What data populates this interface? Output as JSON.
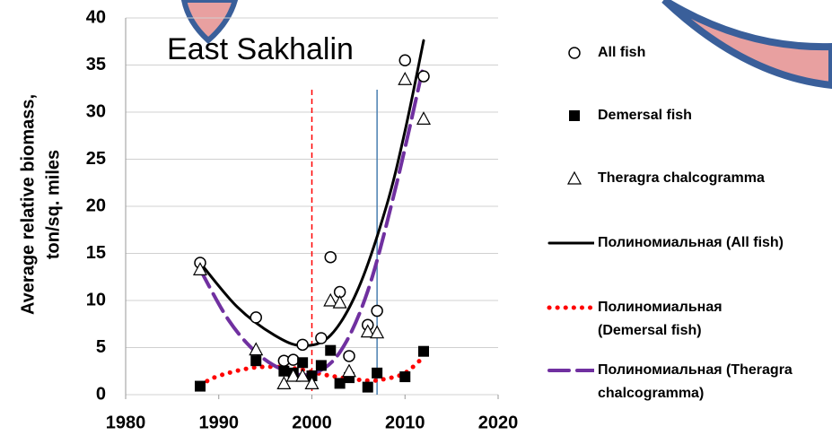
{
  "chart_data": {
    "type": "scatter",
    "annotation": "East Sakhalin",
    "ylabel_lines": [
      "Average relative biomass,",
      "ton/sq. miles"
    ],
    "xlim": [
      1980,
      2020
    ],
    "xticks": [
      1980,
      1990,
      2000,
      2010,
      2020
    ],
    "ylim": [
      0,
      40
    ],
    "yticks": [
      0,
      5,
      10,
      15,
      20,
      25,
      30,
      35,
      40
    ],
    "grid": true,
    "legend": "right",
    "reference_lines": [
      {
        "x": 2000,
        "color": "#ff0000",
        "style": "dashed"
      },
      {
        "x": 2007,
        "color": "#4a7fb0",
        "style": "solid"
      }
    ],
    "series": [
      {
        "name": "All fish",
        "kind": "points",
        "marker": "circle",
        "color": "#000000",
        "x": [
          1988,
          1994,
          1997,
          1998,
          1999,
          2001,
          2002,
          2003,
          2004,
          2006,
          2007,
          2010,
          2012
        ],
        "values": [
          14.0,
          8.2,
          3.6,
          3.7,
          5.3,
          6.0,
          14.6,
          10.9,
          4.1,
          7.4,
          8.9,
          35.5,
          33.8
        ]
      },
      {
        "name": "Demersal fish",
        "kind": "points",
        "marker": "square",
        "color": "#000000",
        "x": [
          1988,
          1994,
          1997,
          1998,
          1999,
          2000,
          2001,
          2002,
          2003,
          2004,
          2006,
          2007,
          2010,
          2012
        ],
        "values": [
          0.9,
          3.6,
          2.5,
          2.3,
          3.4,
          2.0,
          3.1,
          4.7,
          1.2,
          1.8,
          0.8,
          2.3,
          1.9,
          4.6
        ]
      },
      {
        "name": "Theragra chalcogramma",
        "kind": "points",
        "marker": "triangle",
        "color": "#000000",
        "x": [
          1988,
          1994,
          1997,
          1998,
          1999,
          2000,
          2002,
          2003,
          2004,
          2006,
          2007,
          2010,
          2012
        ],
        "values": [
          13.3,
          4.8,
          1.2,
          2.0,
          2.0,
          1.2,
          10.0,
          9.8,
          2.5,
          6.7,
          6.6,
          33.5,
          29.3
        ]
      },
      {
        "name": "Полиномиальная (All fish)",
        "kind": "line",
        "style": "solid",
        "color": "#000000",
        "x": [
          1988,
          1992,
          1996,
          1999,
          2002,
          2005,
          2008,
          2010,
          2012
        ],
        "values": [
          14.0,
          9.3,
          6.3,
          5.2,
          6.3,
          11.3,
          20.0,
          28.0,
          37.6
        ]
      },
      {
        "name": "Полиномиальная (Demersal fish)",
        "kind": "line",
        "style": "dotted",
        "color": "#ff0000",
        "x": [
          1988,
          1990,
          1994,
          1998,
          2002,
          2006,
          2008,
          2010,
          2012
        ],
        "values": [
          1.0,
          2.0,
          2.9,
          2.8,
          2.0,
          1.5,
          1.7,
          2.3,
          4.0
        ]
      },
      {
        "name": "Полиномиальная (Theragra chalcogramma)",
        "kind": "line",
        "style": "dashed",
        "color": "#7030a0",
        "x": [
          1988,
          1991,
          1994,
          1997,
          2000,
          2003,
          2006,
          2009,
          2012
        ],
        "values": [
          13.3,
          8.0,
          4.5,
          2.6,
          2.2,
          4.5,
          11.0,
          22.0,
          35.0
        ]
      }
    ]
  }
}
